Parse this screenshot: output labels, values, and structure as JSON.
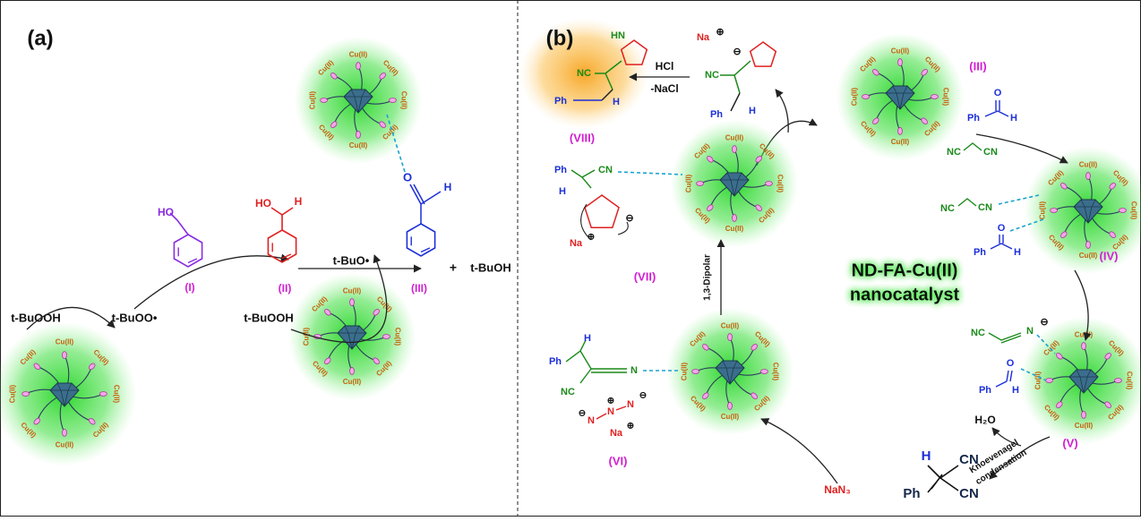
{
  "panel_a": {
    "label": "(a)",
    "tbuooh": "t-BuOOH",
    "tbuoo": "t-BuOO•",
    "tbuo": "t-BuO•",
    "tbuoh": "t-BuOH",
    "plus": "+",
    "compounds": [
      "(I)",
      "(II)",
      "(III)"
    ],
    "ho": "HO",
    "h": "H",
    "o": "O"
  },
  "panel_b": {
    "label": "(b)",
    "hcl": "HCl",
    "nacl": "-NaCl",
    "intermediates": [
      "(III)",
      "(IV)",
      "(V)",
      "(VI)",
      "(VII)",
      "(VIII)"
    ],
    "na": "Na",
    "nan3": "NaN₃",
    "h2o": "H₂O",
    "knoevenagel": [
      "Knoevenagel",
      "condensation"
    ],
    "dipolar": "1,3-Dipolar",
    "catalyst_name": [
      "ND-FA-Cu(II)",
      "nanocatalyst"
    ]
  },
  "groups": {
    "ph": "Ph",
    "cn": "CN",
    "nc": "NC",
    "h": "H",
    "o": "O",
    "n": "N",
    "hn": "HN"
  },
  "charges": {
    "positive": "⊕",
    "negative": "⊖"
  },
  "catalyst": {
    "metal": "Cu(II)"
  }
}
